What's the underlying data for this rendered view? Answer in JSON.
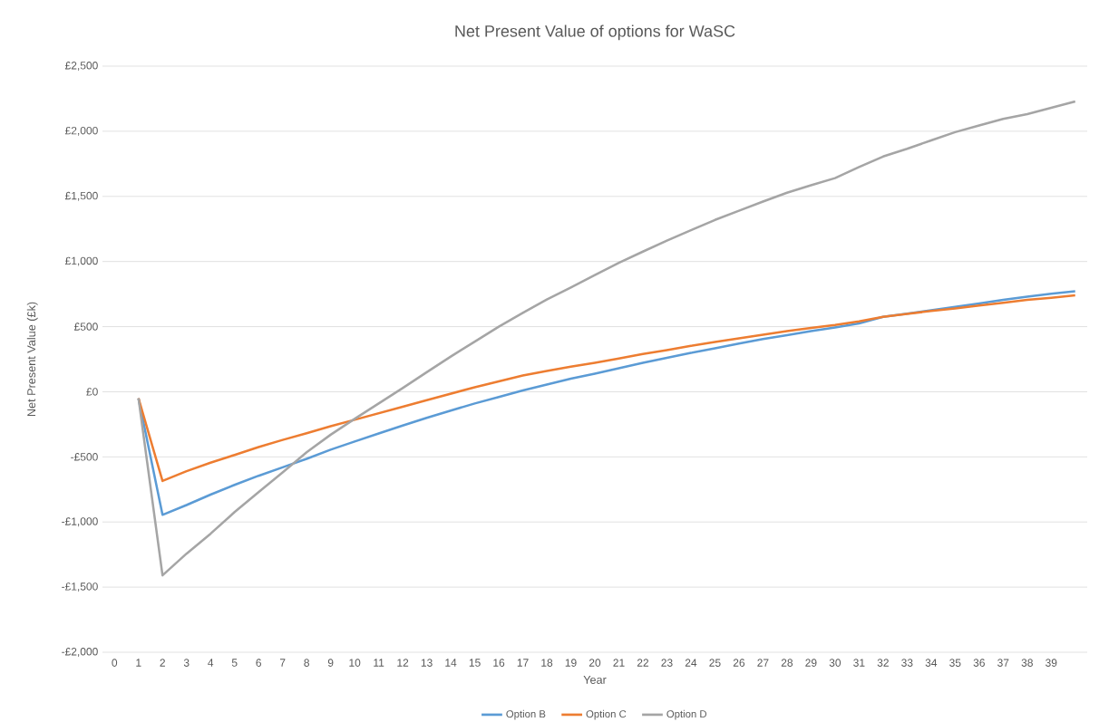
{
  "chart_data": {
    "type": "line",
    "title": "Net Present Value of options for WaSC",
    "xlabel": "Year",
    "ylabel": "Net Present Value (£k)",
    "categories": [
      "0",
      "1",
      "2",
      "3",
      "4",
      "5",
      "6",
      "7",
      "8",
      "9",
      "10",
      "11",
      "12",
      "13",
      "14",
      "15",
      "16",
      "17",
      "18",
      "19",
      "20",
      "21",
      "22",
      "23",
      "24",
      "25",
      "26",
      "27",
      "28",
      "29",
      "30",
      "31",
      "32",
      "33",
      "34",
      "35",
      "36",
      "37",
      "38",
      "39",
      null
    ],
    "series": [
      {
        "name": "Option B",
        "color": "#5b9bd5",
        "values": [
          null,
          -50,
          -945,
          -870,
          -790,
          -715,
          -645,
          -580,
          -515,
          -445,
          -382,
          -320,
          -260,
          -200,
          -145,
          -90,
          -40,
          10,
          55,
          100,
          139,
          180,
          222,
          260,
          298,
          333,
          370,
          405,
          435,
          465,
          493,
          525,
          575,
          600,
          625,
          652,
          678,
          705,
          730,
          752,
          771
        ]
      },
      {
        "name": "Option C",
        "color": "#ed7d31",
        "values": [
          null,
          -50,
          -685,
          -610,
          -545,
          -485,
          -425,
          -370,
          -318,
          -265,
          -215,
          -165,
          -115,
          -65,
          -15,
          35,
          80,
          125,
          160,
          192,
          222,
          255,
          290,
          320,
          352,
          382,
          410,
          438,
          465,
          490,
          512,
          540,
          575,
          598,
          620,
          640,
          662,
          683,
          705,
          722,
          740
        ]
      },
      {
        "name": "Option D",
        "color": "#a5a5a5",
        "values": [
          null,
          -50,
          -1410,
          -1243,
          -1090,
          -924,
          -770,
          -620,
          -465,
          -330,
          -208,
          -90,
          28,
          150,
          270,
          385,
          500,
          605,
          708,
          800,
          896,
          990,
          1076,
          1160,
          1240,
          1319,
          1390,
          1460,
          1528,
          1585,
          1640,
          1725,
          1806,
          1865,
          1930,
          1993,
          2045,
          2095,
          2132,
          2180,
          2229
        ]
      }
    ],
    "ylim": [
      -2000,
      2500
    ],
    "yticks": [
      {
        "value": -2000,
        "label": "-£2,000"
      },
      {
        "value": -1500,
        "label": "-£1,500"
      },
      {
        "value": -1000,
        "label": "-£1,000"
      },
      {
        "value": -500,
        "label": "-£500"
      },
      {
        "value": 0,
        "label": "£0"
      },
      {
        "value": 500,
        "label": "£500"
      },
      {
        "value": 1000,
        "label": "£1,000"
      },
      {
        "value": 1500,
        "label": "£1,500"
      },
      {
        "value": 2000,
        "label": "£2,000"
      },
      {
        "value": 2500,
        "label": "£2,500"
      }
    ],
    "grid": "y",
    "legend": "bottom"
  }
}
